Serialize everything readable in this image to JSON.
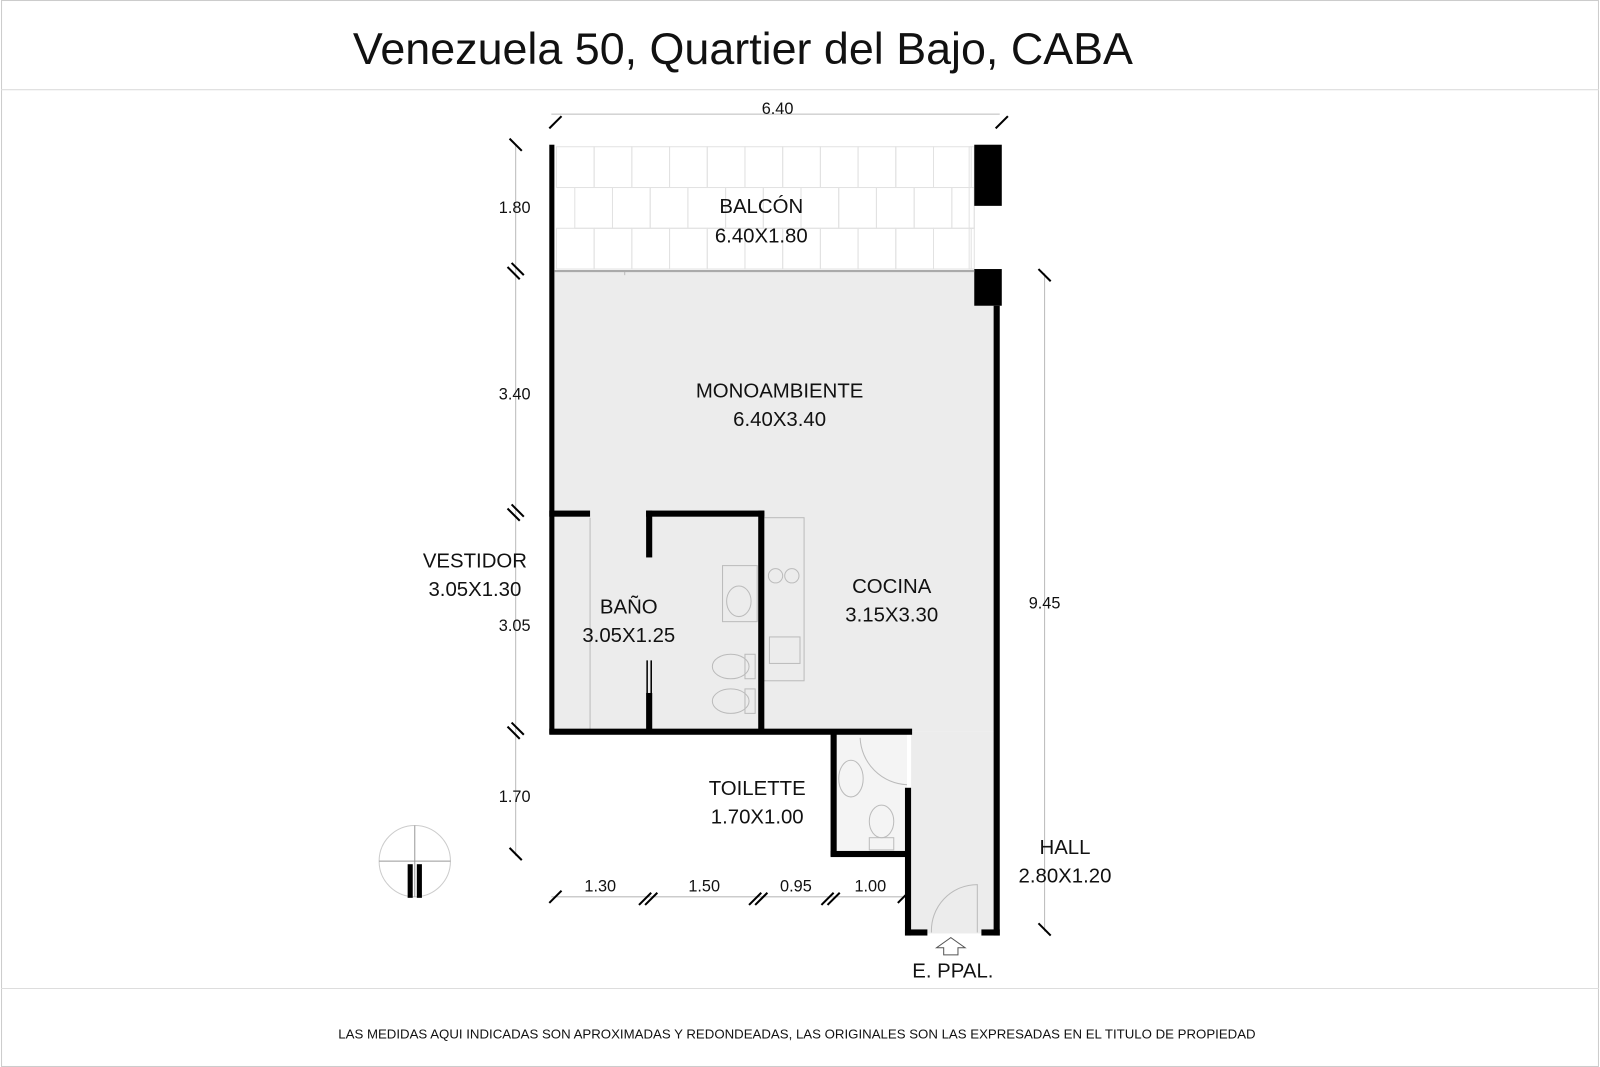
{
  "header": {
    "title": "Venezuela 50, Quartier del Bajo, CABA"
  },
  "rooms": [
    {
      "name": "BALCÓN",
      "size": "6.40X1.80"
    },
    {
      "name": "MONOAMBIENTE",
      "size": "6.40X3.40"
    },
    {
      "name": "VESTIDOR",
      "size": "3.05X1.30"
    },
    {
      "name": "BAÑO",
      "size": "3.05X1.25"
    },
    {
      "name": "COCINA",
      "size": "3.15X3.30"
    },
    {
      "name": "TOILETTE",
      "size": "1.70X1.00"
    },
    {
      "name": "HALL",
      "size": "2.80X1.20"
    }
  ],
  "dimensions": {
    "top": "6.40",
    "left": [
      "1.80",
      "3.40",
      "3.05",
      "1.70"
    ],
    "right": "9.45",
    "bottom": [
      "1.30",
      "1.50",
      "0.95",
      "1.00"
    ]
  },
  "entrance": "E. PPAL.",
  "footer": "LAS MEDIDAS AQUI INDICADAS SON APROXIMADAS Y REDONDEADAS, LAS ORIGINALES SON LAS EXPRESADAS EN EL TITULO DE PROPIEDAD"
}
